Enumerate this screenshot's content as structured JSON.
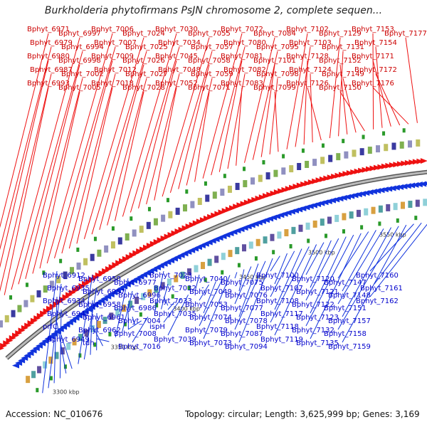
{
  "title": "Burkholderia phytofirmans PsJN chromosome 2, complete sequen...",
  "colors": {
    "top_strand": "#ee1111",
    "bottom_strand": "#1133dd",
    "label_top": "#cc0000",
    "label_bottom": "#0000cc",
    "backbone": "#888888"
  },
  "ticks": [
    "3300 kbp",
    "3350 kbp",
    "3400 kbp",
    "3450 kbp",
    "3500 kbp",
    "3550 kbp"
  ],
  "top_labels": [
    "Bphyt_6971",
    "Bphyt_6979",
    "Bphyt_6980",
    "Bphyt_6987",
    "Bphyt_6993",
    "Bphyt_6997",
    "Bphyt_6994",
    "Bphyt_6998",
    "Bphyt_7002",
    "Bphyt_7005",
    "Bphyt_7006",
    "Bphyt_7007",
    "Bphyt_7009",
    "Bphyt_7012",
    "Bphyt_7018",
    "Bphyt_7024",
    "Bphyt_7025",
    "Bphyt_7026",
    "Bphyt_7027",
    "Bphyt_7028",
    "Bphyt_7030",
    "Bphyt_7034",
    "Bphyt_7045",
    "Bphyt_7048",
    "Bphyt_7052",
    "Bphyt_7055",
    "Bphyt_7057",
    "Bphyt_7058",
    "Bphyt_7059",
    "Bphyt_7071",
    "Bphyt_7072",
    "Bphyt_7080",
    "Bphyt_7081",
    "Bphyt_7082",
    "Bphyt_7083",
    "Bphyt_7084",
    "Bphyt_7095",
    "Bphyt_7101",
    "Bphyt_7098",
    "Bphyt_7099",
    "Bphyt_7102",
    "Bphyt_7103",
    "Bphyt_7128",
    "Bphyt_7124",
    "Bphyt_7126",
    "Bphyt_7129",
    "Bphyt_7131",
    "Bphyt_7152",
    "Bphyt_7149",
    "Bphyt_7150",
    "Bphyt_7153",
    "Bphyt_7154",
    "Bphyt_7171",
    "Bphyt_7172",
    "Bphyt_7176",
    "Bphyt_7177"
  ],
  "bottom_labels": [
    "Bphyt_6912",
    "Bphyt_6935",
    "Bphyt_6934",
    "Bphyt_6941",
    "prfC",
    "Bphyt_6949",
    "Bphyt_6950",
    "Bphyt_6957",
    "Bphyt_6958",
    "Bphyt_6961",
    "Bphyt_6962",
    "tdh",
    "Bphyt_6977",
    "Bphyt_6996",
    "Bphyt_6986",
    "Bphyt_7004",
    "Bphyt_7008",
    "Bphyt_7016",
    "Bphyt_7023",
    "Bphyt_7032",
    "Bphyt_7033",
    "Bphyt_7035",
    "ispH",
    "Bphyt_7039",
    "Bphyt_7040",
    "Bphyt_7049",
    "Bphyt_7053",
    "Bphyt_7074",
    "Bphyt_7079",
    "Bphyt_7073",
    "Bphyt_7075",
    "Bphyt_7076",
    "Bphyt_7077",
    "Bphyt_7078",
    "Bphyt_7087",
    "Bphyt_7094",
    "Bphyt_7100",
    "Bphyt_7107",
    "Bphyt_7108",
    "Bphyt_7117",
    "Bphyt_7118",
    "Bphyt_7119",
    "Bphyt_7120",
    "Bphyt_7121",
    "Bphyt_7122",
    "Bphyt_7123",
    "Bphyt_7132",
    "Bphyt_7135",
    "Bphyt_7147",
    "Bphyt_7148",
    "Bphyt_7151",
    "Bphyt_7157",
    "Bphyt_7158",
    "Bphyt_7159",
    "Bphyt_7160",
    "Bphyt_7161",
    "Bphyt_7162"
  ],
  "footer": {
    "accession": "Accession: NC_010676",
    "summary": "Topology: circular; Length: 3,625,999 bp; Genes: 3,169"
  }
}
